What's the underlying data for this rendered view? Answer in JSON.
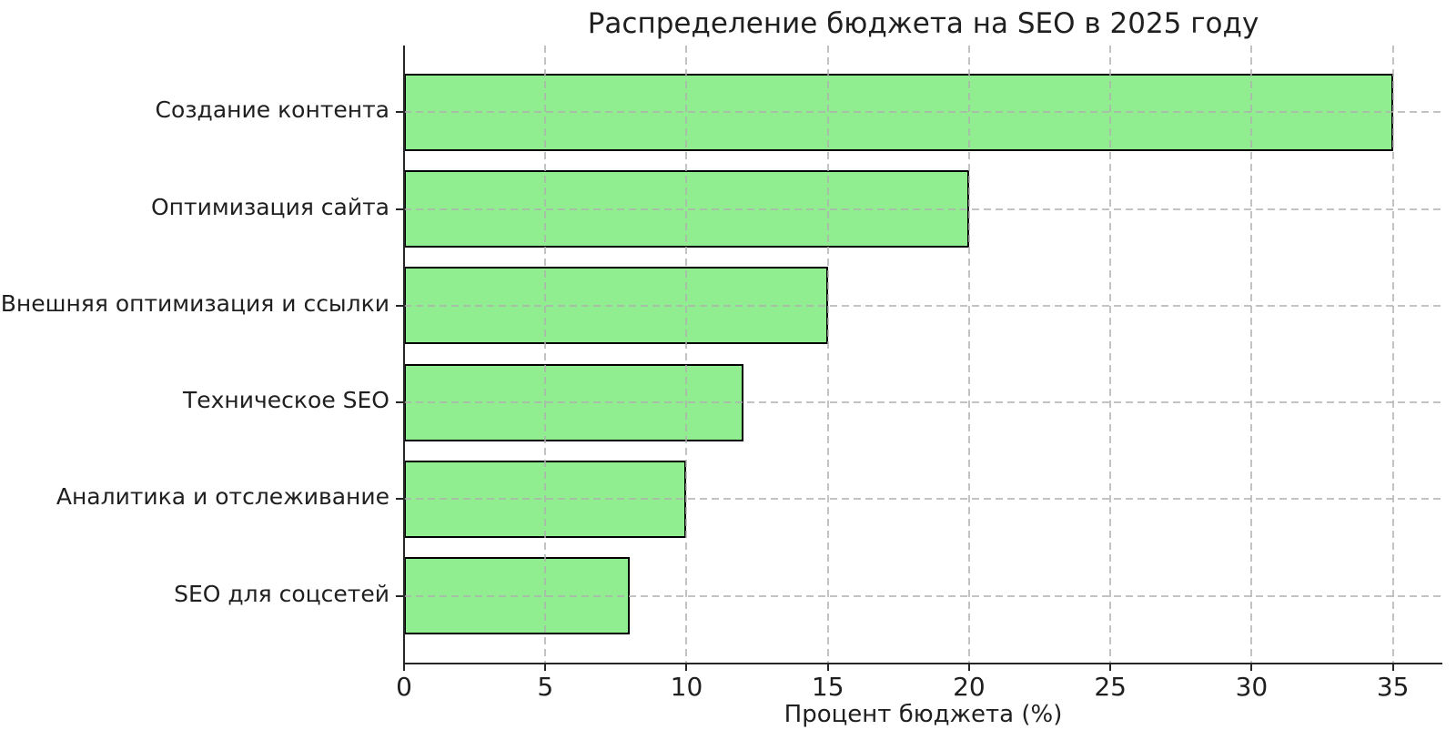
{
  "chart_data": {
    "type": "bar",
    "orientation": "horizontal",
    "title": "Распределение бюджета на SEO в 2025 году",
    "xlabel": "Процент бюджета (%)",
    "ylabel": "",
    "categories": [
      "Создание контента",
      "Оптимизация сайта",
      "Внешняя оптимизация и ссылки",
      "Техническое SEO",
      "Аналитика и отслеживание",
      "SEO для соцсетей"
    ],
    "values": [
      35,
      20,
      15,
      12,
      10,
      8
    ],
    "xlim": [
      0,
      36.75
    ],
    "xticks": [
      0,
      5,
      10,
      15,
      20,
      25,
      30,
      35
    ],
    "grid": true,
    "grid_style": "dashed",
    "legend": "none",
    "colors": {
      "bar_fill": "#90EE90",
      "bar_edge": "#000000",
      "grid": "#afafaf",
      "axis": "#262626",
      "text": "#1f1f1f",
      "background": "#ffffff"
    }
  }
}
